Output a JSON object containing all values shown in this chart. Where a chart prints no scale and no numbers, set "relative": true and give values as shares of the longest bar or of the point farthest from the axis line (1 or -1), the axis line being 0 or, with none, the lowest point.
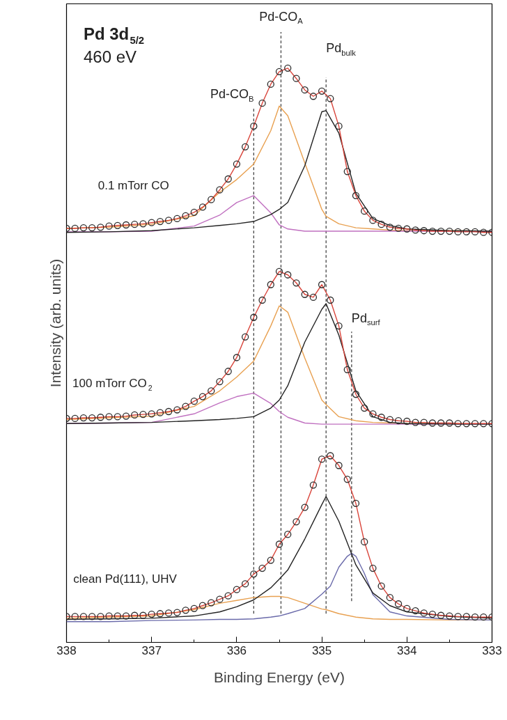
{
  "chart_data": {
    "type": "line",
    "relative": true,
    "title": "Pd 3d$_{5/2}$",
    "subtitle": "460 eV",
    "xlabel": "Binding Energy (eV)",
    "ylabel": "Intensity (arb. units)",
    "xlim": [
      338,
      333
    ],
    "xticks": [
      338,
      337,
      336,
      335,
      334,
      333
    ],
    "x": [
      338,
      337.9,
      337.8,
      337.7,
      337.6,
      337.5,
      337.4,
      337.3,
      337.2,
      337.1,
      337,
      336.9,
      336.8,
      336.7,
      336.6,
      336.5,
      336.4,
      336.3,
      336.2,
      336.1,
      336,
      335.9,
      335.8,
      335.7,
      335.6,
      335.5,
      335.4,
      335.3,
      335.2,
      335.1,
      335,
      334.9,
      334.8,
      334.7,
      334.6,
      334.5,
      334.4,
      334.3,
      334.2,
      334.1,
      334,
      333.9,
      333.8,
      333.7,
      333.6,
      333.5,
      333.4,
      333.3,
      333.2,
      333.1,
      333
    ],
    "series": [
      {
        "type": "line",
        "color": "#e8a050",
        "x": [
          338,
          337.5,
          337,
          336.5,
          336.2,
          336,
          335.8,
          335.6,
          335.5,
          335.4,
          335.2,
          335,
          334.95,
          334.8,
          334.6,
          334.4,
          334.2,
          334,
          333.5,
          333
        ],
        "values": [
          0.721,
          0.723,
          0.728,
          0.743,
          0.784,
          0.806,
          0.833,
          0.891,
          0.934,
          0.917,
          0.835,
          0.754,
          0.742,
          0.729,
          0.722,
          0.72,
          0.718,
          0.717,
          0.717,
          0.716
        ]
      },
      {
        "type": "line",
        "color": "#c070c0",
        "x": [
          338,
          337.5,
          337,
          336.5,
          336.2,
          336,
          335.8,
          335.6,
          335.5,
          335.4,
          335.2,
          335,
          334.95,
          334.8,
          334.6,
          334.4,
          334.2,
          334,
          333.5,
          333
        ],
        "values": [
          0.715,
          0.715,
          0.716,
          0.725,
          0.744,
          0.766,
          0.778,
          0.748,
          0.727,
          0.72,
          0.716,
          0.716,
          0.716,
          0.716,
          0.716,
          0.716,
          0.716,
          0.716,
          0.716,
          0.716
        ]
      },
      {
        "type": "line",
        "color": "#222222",
        "x": [
          338,
          337.5,
          337,
          336.5,
          336.2,
          336,
          335.8,
          335.6,
          335.5,
          335.4,
          335.2,
          335,
          334.95,
          334.8,
          334.6,
          334.4,
          334.2,
          334,
          333.5,
          333
        ],
        "values": [
          0.714,
          0.715,
          0.717,
          0.722,
          0.726,
          0.729,
          0.733,
          0.745,
          0.754,
          0.766,
          0.83,
          0.924,
          0.926,
          0.887,
          0.782,
          0.738,
          0.726,
          0.72,
          0.717,
          0.716
        ]
      },
      {
        "type": "line",
        "color": "#d9443a",
        "values": [
          0.721,
          0.721,
          0.722,
          0.722,
          0.723,
          0.725,
          0.726,
          0.727,
          0.728,
          0.729,
          0.731,
          0.733,
          0.735,
          0.738,
          0.743,
          0.749,
          0.758,
          0.771,
          0.788,
          0.807,
          0.833,
          0.863,
          0.899,
          0.939,
          0.972,
          0.994,
          1.0,
          0.982,
          0.962,
          0.951,
          0.96,
          0.947,
          0.899,
          0.82,
          0.778,
          0.751,
          0.735,
          0.728,
          0.723,
          0.721,
          0.72,
          0.718,
          0.717,
          0.716,
          0.716,
          0.716,
          0.715,
          0.715,
          0.715,
          0.714,
          0.714
        ]
      },
      {
        "type": "scatter",
        "marker": "circle",
        "color": "#2b2b2b",
        "values": [
          0.721,
          0.721,
          0.722,
          0.722,
          0.723,
          0.725,
          0.726,
          0.727,
          0.728,
          0.729,
          0.731,
          0.733,
          0.735,
          0.738,
          0.743,
          0.749,
          0.758,
          0.771,
          0.788,
          0.807,
          0.833,
          0.863,
          0.899,
          0.939,
          0.972,
          0.994,
          1.0,
          0.982,
          0.962,
          0.951,
          0.96,
          0.947,
          0.899,
          0.82,
          0.778,
          0.751,
          0.735,
          0.728,
          0.723,
          0.721,
          0.72,
          0.718,
          0.717,
          0.716,
          0.716,
          0.716,
          0.715,
          0.715,
          0.715,
          0.714,
          0.714
        ]
      },
      {
        "type": "line",
        "color": "#e8a050",
        "x": [
          338,
          337.5,
          337,
          336.5,
          336.2,
          336,
          335.8,
          335.6,
          335.5,
          335.4,
          335.2,
          335,
          334.95,
          334.8,
          334.6,
          334.4,
          334.2,
          334,
          333.5,
          333
        ],
        "values": [
          0.388,
          0.391,
          0.394,
          0.411,
          0.438,
          0.462,
          0.49,
          0.551,
          0.586,
          0.575,
          0.495,
          0.422,
          0.414,
          0.393,
          0.386,
          0.383,
          0.382,
          0.381,
          0.381,
          0.38
        ]
      },
      {
        "type": "line",
        "color": "#c070c0",
        "x": [
          338,
          337.5,
          337,
          336.5,
          336.2,
          336,
          335.8,
          335.6,
          335.5,
          335.4,
          335.2,
          335,
          334.95,
          334.8,
          334.6,
          334.4,
          334.2,
          334,
          333.5,
          333
        ],
        "values": [
          0.381,
          0.382,
          0.383,
          0.398,
          0.417,
          0.428,
          0.434,
          0.416,
          0.402,
          0.392,
          0.382,
          0.38,
          0.38,
          0.38,
          0.38,
          0.38,
          0.38,
          0.38,
          0.38,
          0.38
        ]
      },
      {
        "type": "line",
        "color": "#222222",
        "x": [
          338,
          337.5,
          337,
          336.5,
          336.2,
          336,
          335.8,
          335.6,
          335.5,
          335.4,
          335.2,
          335,
          334.95,
          334.8,
          334.6,
          334.4,
          334.2,
          334,
          333.5,
          333
        ],
        "values": [
          0.381,
          0.382,
          0.383,
          0.386,
          0.388,
          0.39,
          0.393,
          0.408,
          0.422,
          0.447,
          0.523,
          0.58,
          0.59,
          0.535,
          0.438,
          0.393,
          0.383,
          0.381,
          0.38,
          0.38
        ]
      },
      {
        "type": "line",
        "color": "#d9443a",
        "values": [
          0.39,
          0.39,
          0.391,
          0.391,
          0.392,
          0.393,
          0.393,
          0.394,
          0.396,
          0.397,
          0.398,
          0.4,
          0.402,
          0.405,
          0.411,
          0.42,
          0.428,
          0.438,
          0.454,
          0.472,
          0.496,
          0.532,
          0.566,
          0.596,
          0.623,
          0.646,
          0.64,
          0.626,
          0.606,
          0.601,
          0.623,
          0.596,
          0.551,
          0.475,
          0.432,
          0.408,
          0.398,
          0.392,
          0.388,
          0.386,
          0.385,
          0.383,
          0.383,
          0.382,
          0.382,
          0.382,
          0.381,
          0.381,
          0.381,
          0.381,
          0.381
        ]
      },
      {
        "type": "scatter",
        "marker": "circle",
        "color": "#2b2b2b",
        "values": [
          0.39,
          0.39,
          0.391,
          0.391,
          0.392,
          0.393,
          0.393,
          0.394,
          0.396,
          0.397,
          0.398,
          0.4,
          0.402,
          0.405,
          0.411,
          0.42,
          0.428,
          0.438,
          0.454,
          0.472,
          0.496,
          0.532,
          0.566,
          0.596,
          0.623,
          0.646,
          0.64,
          0.626,
          0.606,
          0.601,
          0.623,
          0.596,
          0.551,
          0.475,
          0.432,
          0.408,
          0.398,
          0.392,
          0.388,
          0.386,
          0.385,
          0.383,
          0.383,
          0.382,
          0.382,
          0.382,
          0.381,
          0.381,
          0.381,
          0.381,
          0.381
        ]
      },
      {
        "type": "line",
        "color": "#e8a050",
        "x": [
          338,
          337.5,
          337,
          336.5,
          336.2,
          336,
          335.8,
          335.6,
          335.5,
          335.4,
          335.2,
          335,
          334.95,
          334.8,
          334.6,
          334.4,
          334.2,
          334,
          333.5,
          333
        ],
        "values": [
          0.042,
          0.044,
          0.046,
          0.057,
          0.068,
          0.073,
          0.078,
          0.08,
          0.08,
          0.078,
          0.068,
          0.058,
          0.057,
          0.05,
          0.044,
          0.041,
          0.04,
          0.04,
          0.039,
          0.039
        ]
      },
      {
        "type": "line",
        "color": "#6a6aaa",
        "x": [
          338,
          337.5,
          337,
          336.5,
          336.2,
          336,
          335.8,
          335.6,
          335.5,
          335.4,
          335.2,
          335,
          334.9,
          334.8,
          334.7,
          334.65,
          334.6,
          334.5,
          334.4,
          334.2,
          334,
          333.5,
          333
        ],
        "values": [
          0.036,
          0.036,
          0.038,
          0.039,
          0.04,
          0.04,
          0.041,
          0.044,
          0.046,
          0.05,
          0.059,
          0.084,
          0.098,
          0.131,
          0.15,
          0.155,
          0.15,
          0.12,
          0.083,
          0.053,
          0.046,
          0.04,
          0.039
        ]
      },
      {
        "type": "line",
        "color": "#222222",
        "x": [
          338,
          337.5,
          337,
          336.5,
          336.2,
          336,
          335.8,
          335.6,
          335.5,
          335.4,
          335.2,
          335,
          334.95,
          334.8,
          334.6,
          334.4,
          334.2,
          334,
          333.5,
          333
        ],
        "values": [
          0.04,
          0.041,
          0.042,
          0.046,
          0.053,
          0.062,
          0.074,
          0.095,
          0.11,
          0.126,
          0.18,
          0.24,
          0.254,
          0.211,
          0.135,
          0.086,
          0.064,
          0.053,
          0.045,
          0.042
        ]
      },
      {
        "type": "line",
        "color": "#d9443a",
        "values": [
          0.045,
          0.045,
          0.045,
          0.045,
          0.045,
          0.046,
          0.046,
          0.046,
          0.047,
          0.047,
          0.049,
          0.05,
          0.051,
          0.052,
          0.056,
          0.059,
          0.064,
          0.069,
          0.075,
          0.081,
          0.092,
          0.102,
          0.119,
          0.129,
          0.143,
          0.171,
          0.188,
          0.21,
          0.235,
          0.274,
          0.319,
          0.325,
          0.308,
          0.284,
          0.242,
          0.175,
          0.129,
          0.098,
          0.078,
          0.067,
          0.059,
          0.055,
          0.051,
          0.049,
          0.047,
          0.046,
          0.045,
          0.045,
          0.044,
          0.044,
          0.044
        ]
      },
      {
        "type": "scatter",
        "marker": "circle",
        "color": "#2b2b2b",
        "values": [
          0.045,
          0.045,
          0.045,
          0.045,
          0.045,
          0.046,
          0.046,
          0.046,
          0.047,
          0.047,
          0.049,
          0.05,
          0.051,
          0.052,
          0.056,
          0.059,
          0.064,
          0.069,
          0.075,
          0.081,
          0.092,
          0.102,
          0.119,
          0.129,
          0.143,
          0.171,
          0.188,
          0.21,
          0.235,
          0.274,
          0.319,
          0.325,
          0.308,
          0.284,
          0.242,
          0.175,
          0.129,
          0.098,
          0.078,
          0.067,
          0.059,
          0.055,
          0.051,
          0.049,
          0.047,
          0.046,
          0.045,
          0.045,
          0.044,
          0.044,
          0.044
        ]
      }
    ],
    "ref_lines": [
      {
        "axis": "x",
        "value": 335.8,
        "label": "Pd-CO$_{B}$",
        "color": "#444444",
        "line_style": "dashed"
      },
      {
        "axis": "x",
        "value": 335.48,
        "label": "Pd-CO$_{A}$",
        "color": "#444444",
        "line_style": "dashed"
      },
      {
        "axis": "x",
        "value": 334.95,
        "label": "Pd$_{bulk}$",
        "color": "#444444",
        "line_style": "dashed"
      },
      {
        "axis": "x",
        "value": 334.65,
        "label": "Pd$_{surf}$",
        "color": "#444444",
        "line_style": "dashed"
      }
    ],
    "annotations": [
      "0.1 mTorr CO",
      "100 mTorr CO$_{2}$",
      "clean Pd(111), UHV"
    ]
  }
}
